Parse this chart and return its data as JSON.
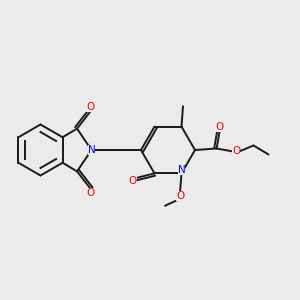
{
  "background_color": "#ebebeb",
  "bond_color": "#1a1a1a",
  "N_color": "#0000ff",
  "O_color": "#ff0000",
  "figsize": [
    3.0,
    3.0
  ],
  "dpi": 100,
  "bond_lw": 1.4,
  "font_size": 7.5,
  "xlim": [
    0.0,
    1.0
  ],
  "ylim": [
    0.15,
    0.85
  ]
}
